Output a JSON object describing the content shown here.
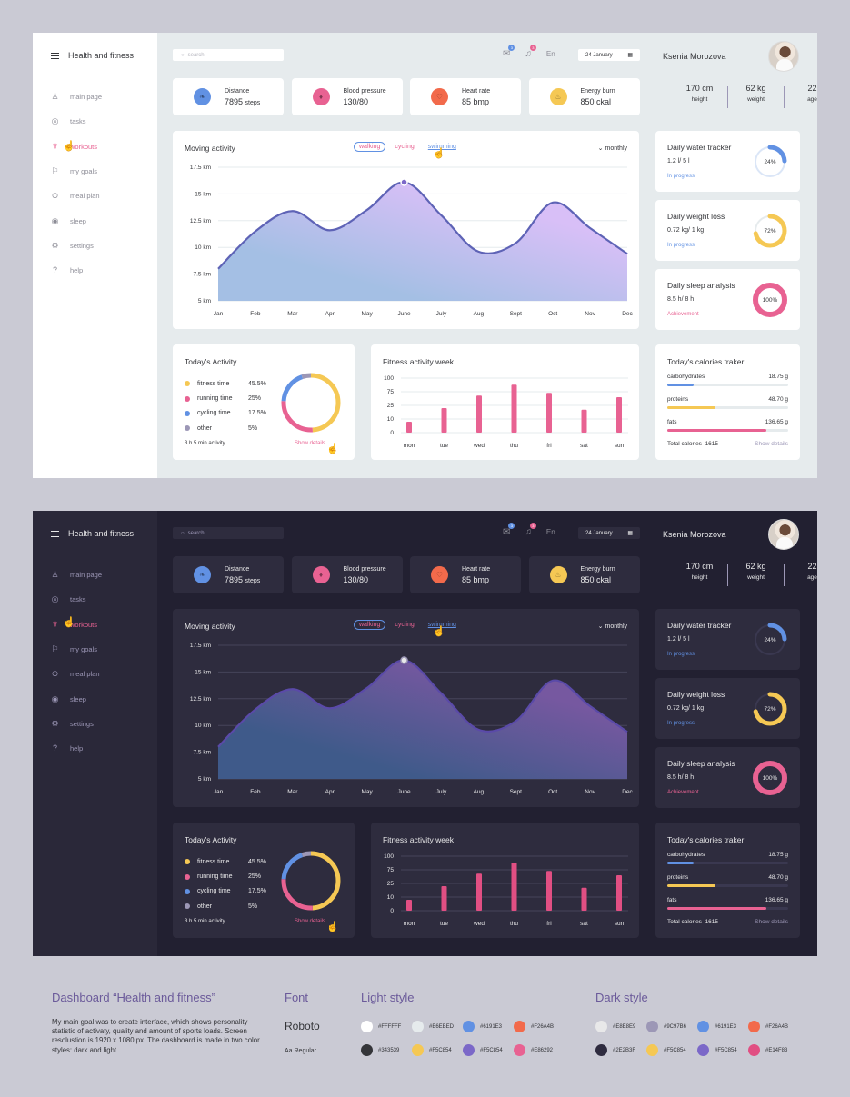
{
  "app": {
    "title": "Health and fitness",
    "nav": [
      {
        "label": "main page",
        "icon": "user-icon",
        "glyph": "♙"
      },
      {
        "label": "tasks",
        "icon": "tasks-icon",
        "glyph": "◎"
      },
      {
        "label": "workouts",
        "icon": "workout-icon",
        "glyph": "☤",
        "active": true
      },
      {
        "label": "my goals",
        "icon": "flag-icon",
        "glyph": "⚐"
      },
      {
        "label": "meal plan",
        "icon": "apple-icon",
        "glyph": "⊙"
      },
      {
        "label": "sleep",
        "icon": "sleep-icon",
        "glyph": "◉"
      },
      {
        "label": "settings",
        "icon": "gear-icon",
        "glyph": "⚙"
      },
      {
        "label": "help",
        "icon": "help-icon",
        "glyph": "?"
      }
    ],
    "search": {
      "placeholder": "search"
    },
    "header": {
      "mail_badge": "3",
      "bell_badge": "3",
      "language": "En",
      "date": "24 January",
      "user_name": "Ksenia Morozova"
    },
    "metrics": [
      {
        "label": "Distance",
        "value": "7895",
        "unit": "steps",
        "icon": "footprints-icon",
        "glyph": "❧",
        "color": "#6191E3"
      },
      {
        "label": "Blood pressure",
        "value": "130/80",
        "unit": "",
        "icon": "drop-icon",
        "glyph": "♦",
        "color": "#E86292"
      },
      {
        "label": "Heart rate",
        "value": "85 bmp",
        "unit": "",
        "icon": "heart-icon",
        "glyph": "♡",
        "color": "#F26A4B"
      },
      {
        "label": "Energy burn",
        "value": "850 ckal",
        "unit": "",
        "icon": "flame-icon",
        "glyph": "♨",
        "color": "#F5C854"
      }
    ],
    "profile_stats": [
      {
        "value": "170 cm",
        "label": "height"
      },
      {
        "value": "62 kg",
        "label": "weight"
      },
      {
        "value": "22",
        "label": "age"
      }
    ],
    "moving_activity": {
      "title": "Moving activity",
      "filters": [
        "walking",
        "cycling",
        "swimming"
      ],
      "active_filter": "walking",
      "period": "monthly"
    },
    "progress_cards": [
      {
        "title": "Daily water tracker",
        "sub": "1.2 l/ 5 l",
        "status": "In progress",
        "percent": 24,
        "label": "24%",
        "color": "#6191E3",
        "status_color": "#6191E3"
      },
      {
        "title": "Daily weight loss",
        "sub": "0.72 kg/ 1 kg",
        "status": "In progress",
        "percent": 72,
        "label": "72%",
        "color": "#F5C854",
        "status_color": "#6191E3"
      },
      {
        "title": "Daily sleep analysis",
        "sub": "8.5 h/ 8 h",
        "status": "Achievement",
        "percent": 100,
        "label": "100%",
        "color": "#E86292",
        "status_color": "#E86292"
      }
    ],
    "todays_activity": {
      "title": "Today's Activity",
      "items": [
        {
          "name": "fitness time",
          "value": "45.5%",
          "pct": 45.5,
          "color": "#F5C854"
        },
        {
          "name": "running time",
          "value": "25%",
          "pct": 25,
          "color": "#E86292"
        },
        {
          "name": "cycling time",
          "value": "17.5%",
          "pct": 17.5,
          "color": "#6191E3"
        },
        {
          "name": "other",
          "value": "5%",
          "pct": 5,
          "color": "#9C97B6"
        }
      ],
      "total": "3 h 5 min activity",
      "show_details": "Show details"
    },
    "fitness_week": {
      "title": "Fitness activity week"
    },
    "calories": {
      "title": "Today's calories traker",
      "items": [
        {
          "name": "carbohydrates",
          "value": "18.75 g",
          "fill": 0.22,
          "color": "#6191E3"
        },
        {
          "name": "proteins",
          "value": "48.70 g",
          "fill": 0.4,
          "color": "#F5C854"
        },
        {
          "name": "fats",
          "value": "136.65 g",
          "fill": 0.82,
          "color": "#E86292"
        }
      ],
      "total_label": "Total calories",
      "total_value": "1615",
      "show_details": "Show details"
    }
  },
  "chart_data": [
    {
      "type": "area",
      "title": "Moving activity",
      "categories": [
        "Jan",
        "Feb",
        "Mar",
        "Apr",
        "May",
        "June",
        "July",
        "Aug",
        "Sept",
        "Oct",
        "Nov",
        "Dec"
      ],
      "values": [
        8.0,
        11.5,
        13.4,
        11.6,
        13.5,
        16.1,
        13.0,
        9.6,
        10.4,
        14.2,
        11.8,
        9.4
      ],
      "highlight_index": 5,
      "y_ticks": [
        "5 km",
        "7.5 km",
        "10 km",
        "12.5 km",
        "15 km",
        "17.5 km"
      ],
      "ylim": [
        5,
        17.5
      ],
      "ylabel": "km",
      "grid": true
    },
    {
      "type": "bar",
      "title": "Fitness activity week",
      "categories": [
        "mon",
        "tue",
        "wed",
        "thu",
        "fri",
        "sat",
        "sun"
      ],
      "values": [
        20,
        45,
        68,
        88,
        73,
        42,
        65
      ],
      "y_ticks": [
        "0",
        "10",
        "25",
        "75",
        "100"
      ],
      "ylim": [
        0,
        100
      ],
      "grid": true,
      "color": "#E86292"
    },
    {
      "type": "pie",
      "title": "Today's Activity",
      "categories": [
        "fitness time",
        "running time",
        "cycling time",
        "other"
      ],
      "values": [
        45.5,
        25,
        17.5,
        5
      ]
    }
  ],
  "footer": {
    "title": "Dashboard “Health and fitness”",
    "description": "My main goal was to create interface, which shows personality statistic of activaty, quality and amount of sports loads. Screen resolustion is 1920 x 1080 px. The dashboard is made in two color styles: dark and light",
    "font_heading": "Font",
    "font_name": "Roboto",
    "font_style": "Aa Regular",
    "light_title": "Light style",
    "dark_title": "Dark style",
    "light_palette": [
      "#FFFFFF",
      "#E6EBED",
      "#6191E3",
      "#F26A4B",
      "#343539",
      "#F5C854",
      "#F5C854",
      "#E86292"
    ],
    "light_swatches": [
      "#FFFFFF",
      "#E6EBED",
      "#6191E3",
      "#F26A4B",
      "#343539",
      "#F5C854",
      "#7B68C8",
      "#E86292"
    ],
    "dark_palette": [
      "#E8E8E9",
      "#9C97B6",
      "#6191E3",
      "#F26A4B",
      "#2E2B3F",
      "#F5C854",
      "#F5C854",
      "#E14F83"
    ],
    "dark_swatches": [
      "#E8E8E9",
      "#9C97B6",
      "#6191E3",
      "#F26A4B",
      "#2E2B3F",
      "#F5C854",
      "#7B68C8",
      "#E14F83"
    ]
  }
}
